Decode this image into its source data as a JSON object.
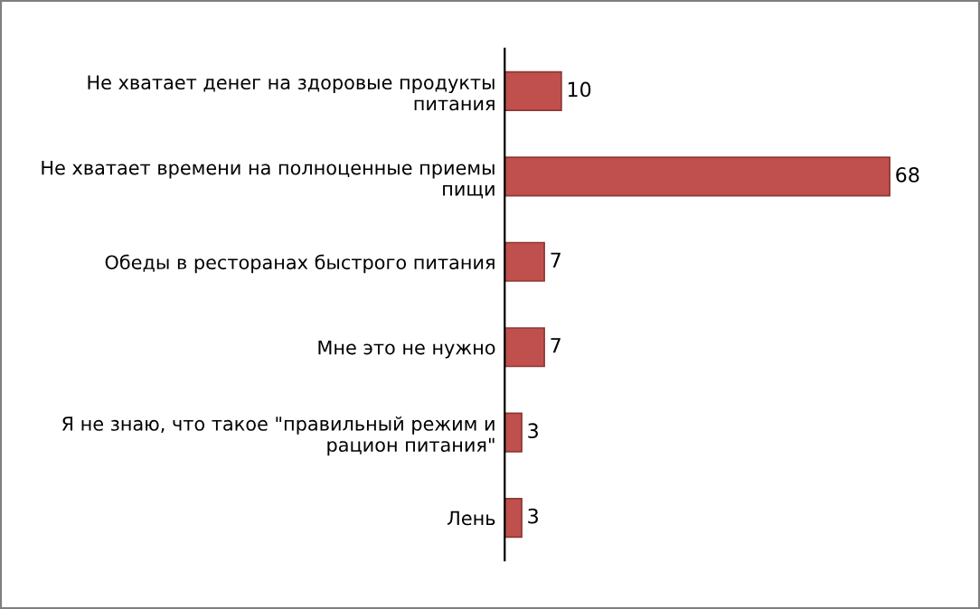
{
  "chart_data": {
    "type": "bar",
    "orientation": "horizontal",
    "categories": [
      "Не хватает денег на здоровые продукты питания",
      "Не хватает времени на полноценные приемы пищи",
      "Обеды в ресторанах быстрого питания",
      "Мне это не нужно",
      "Я не знаю, что такое \"правильный режим и рацион питания\"",
      "Лень"
    ],
    "values": [
      10,
      68,
      7,
      7,
      3,
      3
    ],
    "color": "#c0504d",
    "data_labels": true,
    "grid": false,
    "legend": false
  }
}
